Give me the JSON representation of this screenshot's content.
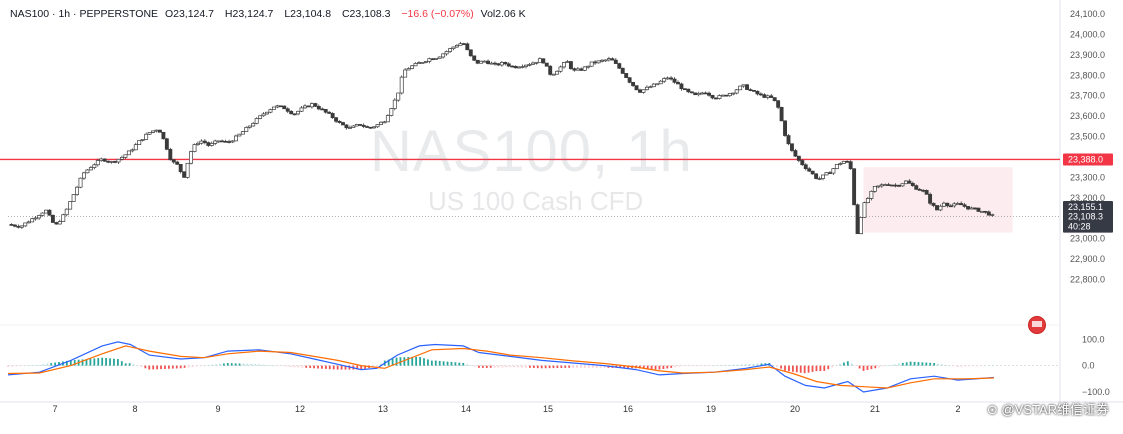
{
  "legend": {
    "symbol": "NAS100 · 1h · PEPPERSTONE",
    "o_label": "O",
    "o": "23,124.7",
    "h_label": "H",
    "h": "23,124.7",
    "l_label": "L",
    "l": "23,104.8",
    "c_label": "C",
    "c": "23,108.3",
    "change": "−16.6 (−0.07%)",
    "vol_label": "Vol",
    "vol": "2.06 K"
  },
  "watermark": {
    "title": "NAS100, 1h",
    "subtitle": "US 100 Cash CFD"
  },
  "credit": "⊙ @VSTAR维信证券",
  "colors": {
    "up": "#26a69a",
    "down": "#ef5350",
    "candle": "#3a3a3a",
    "resistance": "#f23645",
    "zone": "#fbe4ea",
    "macd": "#2962ff",
    "signal": "#ff6d00"
  },
  "chart_data": [
    {
      "type": "candlestick",
      "ylim": [
        22700,
        24100
      ],
      "y_ticks": [
        "24,100.0",
        "24,000.0",
        "23,900.0",
        "23,800.0",
        "23,700.0",
        "23,600.0",
        "23,500.0",
        "23,400.0",
        "23,300.0",
        "23,200.0",
        "23,000.0",
        "22,900.0",
        "22,800.0"
      ],
      "y_tick_values": [
        24100,
        24000,
        23900,
        23800,
        23700,
        23600,
        23500,
        23400,
        23300,
        23200,
        23000,
        22900,
        22800
      ],
      "x_labels": [
        "7",
        "8",
        "9",
        "12",
        "13",
        "14",
        "15",
        "16",
        "19",
        "20",
        "21",
        "2"
      ],
      "close_path": [
        [
          0,
          23070
        ],
        [
          8,
          23060
        ],
        [
          16,
          23100
        ],
        [
          24,
          23140
        ],
        [
          30,
          23060
        ],
        [
          36,
          23120
        ],
        [
          42,
          23220
        ],
        [
          48,
          23320
        ],
        [
          54,
          23360
        ],
        [
          60,
          23390
        ],
        [
          66,
          23375
        ],
        [
          72,
          23395
        ],
        [
          78,
          23430
        ],
        [
          84,
          23480
        ],
        [
          90,
          23520
        ],
        [
          96,
          23540
        ],
        [
          100,
          23470
        ],
        [
          104,
          23380
        ],
        [
          108,
          23360
        ],
        [
          112,
          23300
        ],
        [
          116,
          23420
        ],
        [
          120,
          23470
        ],
        [
          124,
          23480
        ],
        [
          128,
          23455
        ],
        [
          134,
          23480
        ],
        [
          140,
          23470
        ],
        [
          146,
          23500
        ],
        [
          152,
          23540
        ],
        [
          158,
          23580
        ],
        [
          164,
          23620
        ],
        [
          170,
          23650
        ],
        [
          176,
          23640
        ],
        [
          182,
          23610
        ],
        [
          188,
          23640
        ],
        [
          194,
          23660
        ],
        [
          200,
          23630
        ],
        [
          206,
          23600
        ],
        [
          212,
          23560
        ],
        [
          218,
          23540
        ],
        [
          224,
          23560
        ],
        [
          230,
          23540
        ],
        [
          236,
          23560
        ],
        [
          240,
          23580
        ],
        [
          244,
          23640
        ],
        [
          248,
          23700
        ],
        [
          252,
          23820
        ],
        [
          256,
          23840
        ],
        [
          262,
          23860
        ],
        [
          268,
          23880
        ],
        [
          274,
          23890
        ],
        [
          280,
          23920
        ],
        [
          286,
          23950
        ],
        [
          290,
          23960
        ],
        [
          294,
          23900
        ],
        [
          298,
          23860
        ],
        [
          304,
          23870
        ],
        [
          310,
          23850
        ],
        [
          316,
          23860
        ],
        [
          322,
          23840
        ],
        [
          328,
          23850
        ],
        [
          334,
          23860
        ],
        [
          340,
          23880
        ],
        [
          346,
          23800
        ],
        [
          352,
          23840
        ],
        [
          356,
          23870
        ],
        [
          360,
          23820
        ],
        [
          366,
          23830
        ],
        [
          372,
          23860
        ],
        [
          378,
          23870
        ],
        [
          384,
          23880
        ],
        [
          390,
          23830
        ],
        [
          396,
          23770
        ],
        [
          402,
          23720
        ],
        [
          408,
          23740
        ],
        [
          414,
          23760
        ],
        [
          420,
          23790
        ],
        [
          426,
          23760
        ],
        [
          432,
          23720
        ],
        [
          438,
          23700
        ],
        [
          444,
          23720
        ],
        [
          450,
          23690
        ],
        [
          456,
          23700
        ],
        [
          462,
          23720
        ],
        [
          468,
          23750
        ],
        [
          474,
          23720
        ],
        [
          480,
          23700
        ],
        [
          486,
          23690
        ],
        [
          490,
          23660
        ],
        [
          492,
          23600
        ],
        [
          496,
          23480
        ],
        [
          500,
          23420
        ],
        [
          504,
          23380
        ],
        [
          508,
          23350
        ],
        [
          512,
          23320
        ],
        [
          516,
          23290
        ],
        [
          520,
          23310
        ],
        [
          524,
          23330
        ],
        [
          528,
          23360
        ],
        [
          532,
          23380
        ],
        [
          536,
          23370
        ],
        [
          538,
          23300
        ],
        [
          540,
          23040
        ],
        [
          542,
          23020
        ],
        [
          544,
          23150
        ],
        [
          548,
          23200
        ],
        [
          552,
          23250
        ],
        [
          556,
          23260
        ],
        [
          560,
          23270
        ],
        [
          566,
          23260
        ],
        [
          572,
          23280
        ],
        [
          578,
          23250
        ],
        [
          584,
          23230
        ],
        [
          588,
          23170
        ],
        [
          592,
          23140
        ],
        [
          596,
          23180
        ],
        [
          600,
          23160
        ],
        [
          606,
          23170
        ],
        [
          612,
          23150
        ],
        [
          618,
          23140
        ],
        [
          624,
          23125
        ],
        [
          628,
          23108
        ]
      ],
      "resistance": {
        "value": 23388,
        "label": "23,388.0"
      },
      "last_price": {
        "value": 23108.3,
        "label": "23,108.3",
        "countdown": "40:28"
      },
      "reference": {
        "value": 23155.1,
        "label": "23,155.1"
      },
      "zone": {
        "x_from": 545,
        "x_to": 640,
        "y_from": 23030,
        "y_to": 23350
      }
    },
    {
      "type": "macd",
      "ylim": [
        -100,
        120
      ],
      "y_ticks": [
        "100.0",
        "0.0",
        "−100.0"
      ],
      "y_tick_values": [
        100,
        0,
        -100
      ],
      "macd": [
        [
          0,
          -35
        ],
        [
          20,
          -25
        ],
        [
          40,
          20
        ],
        [
          60,
          75
        ],
        [
          70,
          90
        ],
        [
          78,
          80
        ],
        [
          90,
          40
        ],
        [
          110,
          25
        ],
        [
          125,
          30
        ],
        [
          140,
          55
        ],
        [
          160,
          60
        ],
        [
          180,
          45
        ],
        [
          195,
          25
        ],
        [
          210,
          5
        ],
        [
          225,
          -15
        ],
        [
          235,
          -10
        ],
        [
          248,
          40
        ],
        [
          262,
          75
        ],
        [
          272,
          80
        ],
        [
          290,
          75
        ],
        [
          300,
          50
        ],
        [
          320,
          35
        ],
        [
          340,
          20
        ],
        [
          360,
          10
        ],
        [
          380,
          0
        ],
        [
          400,
          -15
        ],
        [
          415,
          -35
        ],
        [
          430,
          -30
        ],
        [
          450,
          -25
        ],
        [
          470,
          -10
        ],
        [
          485,
          5
        ],
        [
          495,
          -40
        ],
        [
          508,
          -75
        ],
        [
          520,
          -85
        ],
        [
          535,
          -60
        ],
        [
          545,
          -100
        ],
        [
          560,
          -85
        ],
        [
          575,
          -50
        ],
        [
          590,
          -40
        ],
        [
          605,
          -55
        ],
        [
          628,
          -45
        ]
      ],
      "signal": [
        [
          0,
          -30
        ],
        [
          20,
          -28
        ],
        [
          40,
          0
        ],
        [
          60,
          45
        ],
        [
          75,
          75
        ],
        [
          90,
          55
        ],
        [
          110,
          35
        ],
        [
          125,
          30
        ],
        [
          140,
          45
        ],
        [
          160,
          55
        ],
        [
          180,
          50
        ],
        [
          195,
          35
        ],
        [
          210,
          20
        ],
        [
          225,
          0
        ],
        [
          240,
          -10
        ],
        [
          255,
          25
        ],
        [
          270,
          60
        ],
        [
          290,
          65
        ],
        [
          305,
          55
        ],
        [
          320,
          40
        ],
        [
          340,
          30
        ],
        [
          360,
          18
        ],
        [
          380,
          8
        ],
        [
          400,
          -5
        ],
        [
          415,
          -20
        ],
        [
          430,
          -28
        ],
        [
          450,
          -25
        ],
        [
          470,
          -15
        ],
        [
          485,
          -5
        ],
        [
          500,
          -30
        ],
        [
          515,
          -60
        ],
        [
          530,
          -75
        ],
        [
          545,
          -80
        ],
        [
          560,
          -85
        ],
        [
          575,
          -65
        ],
        [
          590,
          -50
        ],
        [
          610,
          -50
        ],
        [
          628,
          -47
        ]
      ]
    }
  ]
}
